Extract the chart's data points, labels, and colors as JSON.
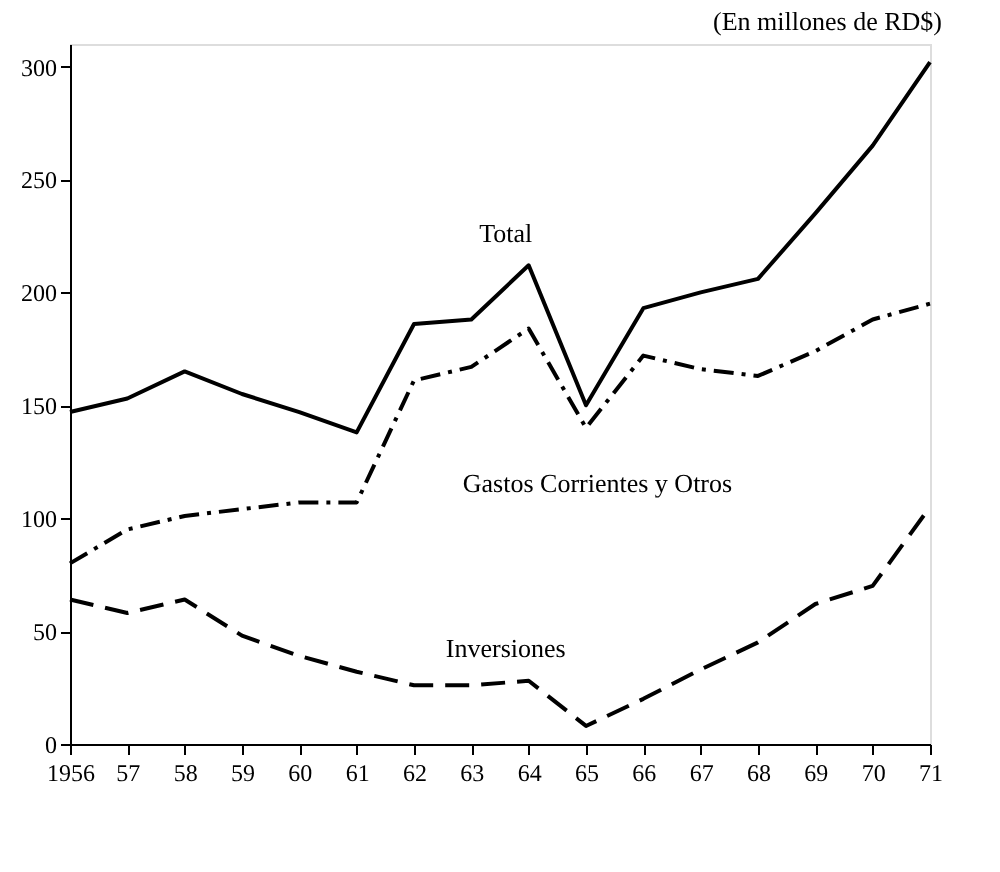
{
  "chart_data": {
    "type": "line",
    "subtitle": "(En millones de RD$)",
    "categories": [
      "1956",
      "57",
      "58",
      "59",
      "60",
      "61",
      "62",
      "63",
      "64",
      "65",
      "66",
      "67",
      "68",
      "69",
      "70",
      "71"
    ],
    "series": [
      {
        "name": "Total",
        "color": "#000000",
        "line_style": "solid",
        "values": [
          147,
          153,
          165,
          155,
          147,
          138,
          186,
          188,
          212,
          150,
          193,
          200,
          206,
          235,
          265,
          302
        ]
      },
      {
        "name": "Gastos Corrientes y Otros",
        "color": "#000000",
        "line_style": "dashdot",
        "values": [
          80,
          95,
          101,
          104,
          107,
          107,
          161,
          167,
          184,
          140,
          172,
          166,
          163,
          174,
          188,
          195
        ]
      },
      {
        "name": "Inversiones",
        "color": "#000000",
        "line_style": "dashed",
        "values": [
          64,
          58,
          64,
          48,
          39,
          32,
          26,
          26,
          28,
          8,
          20,
          33,
          45,
          62,
          70,
          105
        ]
      }
    ],
    "ylim": [
      0,
      310
    ],
    "yticks": [
      0,
      50,
      100,
      150,
      200,
      250,
      300
    ],
    "grid": false,
    "marker": "none"
  }
}
